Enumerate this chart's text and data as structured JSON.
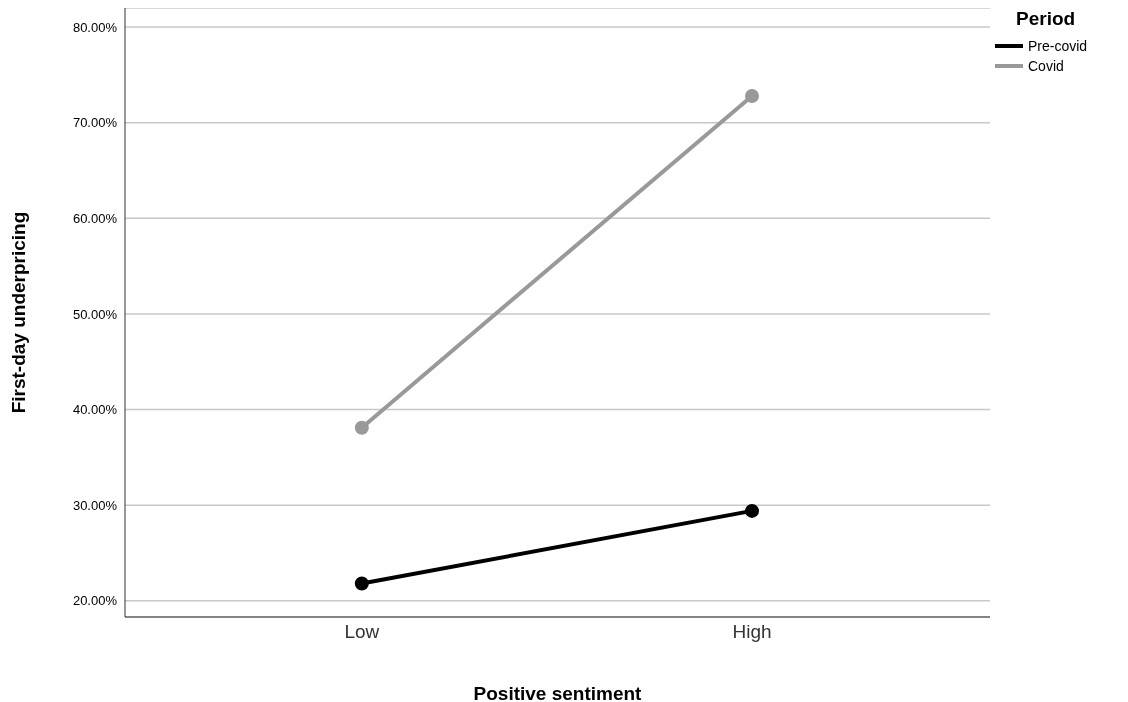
{
  "chart_data": {
    "type": "line",
    "xlabel": "Positive sentiment",
    "ylabel": "First-day underpricing",
    "legend_title": "Period",
    "categories": [
      "Low",
      "High"
    ],
    "series": [
      {
        "name": "Pre-covid",
        "color": "#000000",
        "values": [
          21.8,
          29.4
        ]
      },
      {
        "name": "Covid",
        "color": "#999999",
        "values": [
          38.1,
          72.8
        ]
      }
    ],
    "ylim": [
      18.3,
      82
    ],
    "yticks": [
      {
        "value": 20,
        "label": "20.00%"
      },
      {
        "value": 30,
        "label": "30.00%"
      },
      {
        "value": 40,
        "label": "40.00%"
      },
      {
        "value": 50,
        "label": "50.00%"
      },
      {
        "value": 60,
        "label": "60.00%"
      },
      {
        "value": 70,
        "label": "70.00%"
      },
      {
        "value": 80,
        "label": "80.00%"
      }
    ],
    "grid": "y",
    "legend": "top right",
    "marker": "circle",
    "line_style": "solid"
  }
}
